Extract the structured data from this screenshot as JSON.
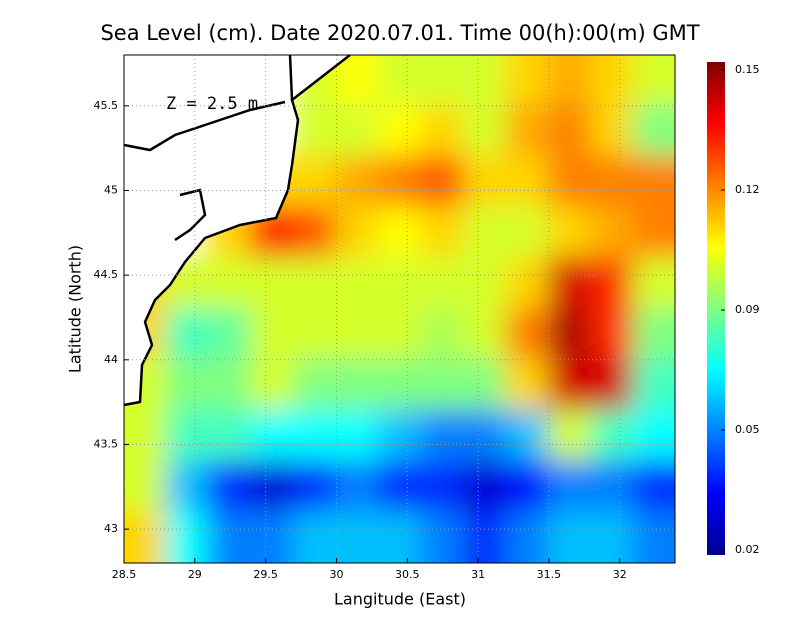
{
  "chart_data": {
    "type": "heatmap",
    "title": "Sea Level (cm). Date 2020.07.01. Time 00(h):00(m) GMT",
    "annotation": "Z = 2.5 m",
    "xlabel": "Langitude (East)",
    "ylabel": "Latitude (North)",
    "xlim": [
      28.5,
      32.39
    ],
    "ylim": [
      42.8,
      45.8
    ],
    "xticks": [
      28.5,
      29,
      29.5,
      30,
      30.5,
      31,
      31.5,
      32
    ],
    "yticks": [
      43,
      43.5,
      44,
      44.5,
      45,
      45.5
    ],
    "grid": true,
    "x": [
      28.65,
      28.95,
      29.25,
      29.55,
      29.85,
      30.15,
      30.45,
      30.75,
      31.05,
      31.35,
      31.65,
      31.95,
      32.25
    ],
    "y": [
      45.65,
      45.35,
      45.05,
      44.75,
      44.45,
      44.15,
      43.85,
      43.55,
      43.25,
      42.95
    ],
    "values": [
      [
        null,
        null,
        null,
        null,
        0.1,
        0.105,
        0.1,
        0.1,
        0.1,
        0.11,
        0.115,
        0.11,
        0.1
      ],
      [
        null,
        null,
        null,
        null,
        0.1,
        0.1,
        0.105,
        0.11,
        0.1,
        0.115,
        0.12,
        0.11,
        0.09
      ],
      [
        null,
        null,
        null,
        0.11,
        0.11,
        0.115,
        0.12,
        0.125,
        0.11,
        0.11,
        0.12,
        0.12,
        0.12
      ],
      [
        null,
        null,
        0.11,
        0.135,
        0.125,
        0.11,
        0.105,
        0.11,
        0.1,
        0.1,
        0.11,
        0.115,
        0.12
      ],
      [
        0.11,
        0.1,
        0.1,
        0.1,
        0.1,
        0.1,
        0.1,
        0.1,
        0.1,
        0.11,
        0.14,
        0.13,
        0.1
      ],
      [
        0.11,
        0.08,
        0.085,
        0.1,
        0.1,
        0.1,
        0.1,
        0.095,
        0.1,
        0.12,
        0.145,
        0.13,
        0.09
      ],
      [
        0.1,
        0.09,
        0.09,
        0.1,
        0.09,
        0.09,
        0.09,
        0.09,
        0.09,
        0.11,
        0.14,
        0.14,
        0.08
      ],
      [
        0.1,
        0.08,
        0.08,
        0.07,
        0.07,
        0.07,
        0.06,
        0.05,
        0.05,
        0.06,
        0.1,
        0.08,
        0.07
      ],
      [
        0.1,
        0.06,
        0.04,
        0.03,
        0.04,
        0.05,
        0.04,
        0.04,
        0.03,
        0.035,
        0.05,
        0.05,
        0.04
      ],
      [
        0.11,
        0.07,
        0.05,
        0.05,
        0.06,
        0.06,
        0.06,
        0.05,
        0.04,
        0.05,
        0.06,
        0.06,
        0.05
      ]
    ],
    "clim": [
      0.02,
      0.15
    ],
    "cticks": [
      0.15,
      0.12,
      0.09,
      0.05,
      0.02
    ],
    "colormap": "jet"
  }
}
